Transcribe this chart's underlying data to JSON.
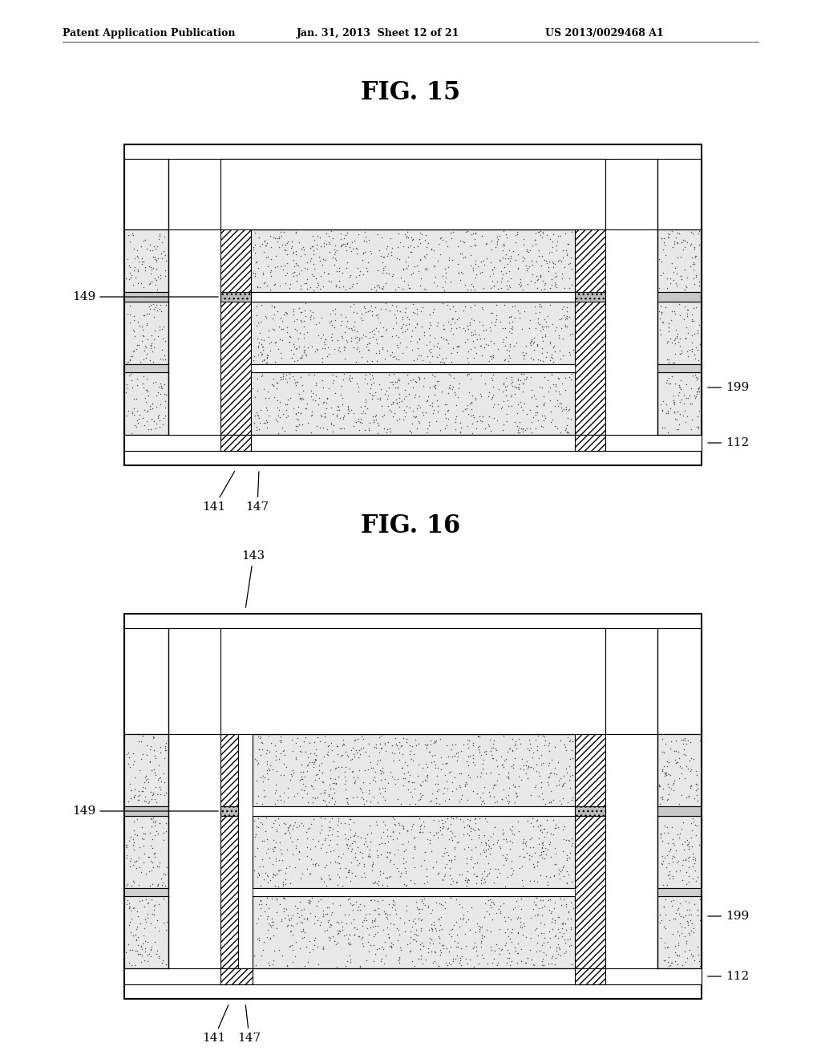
{
  "title": "FIG. 15",
  "title2": "FIG. 16",
  "header_left": "Patent Application Publication",
  "header_center": "Jan. 31, 2013  Sheet 12 of 21",
  "header_right": "US 2013/0029468 A1"
}
